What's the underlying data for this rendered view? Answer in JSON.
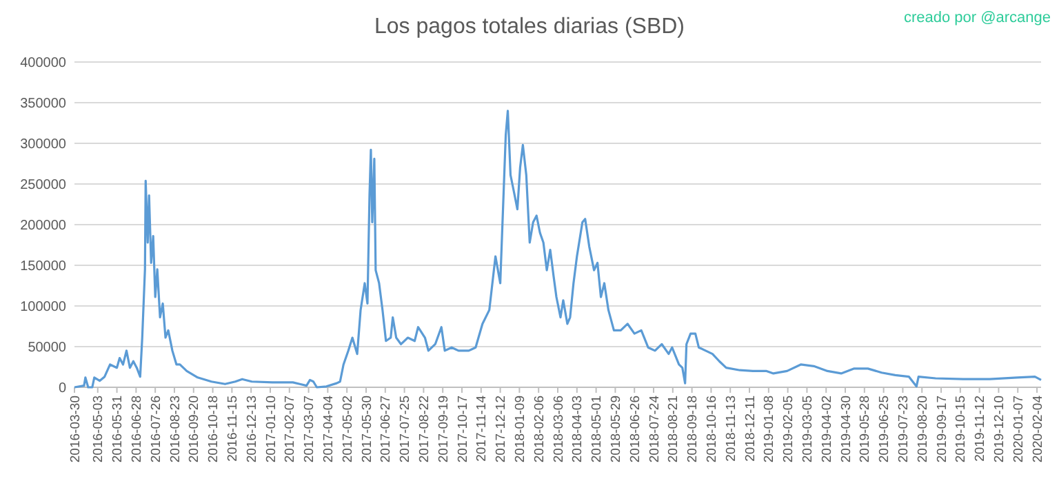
{
  "chart_data": {
    "type": "line",
    "title": "Los pagos totales diarias (SBD)",
    "annotations": [
      "creado por @arcange"
    ],
    "x": [
      "2016-03-30",
      "2016-04-13",
      "2016-04-15",
      "2016-04-19",
      "2016-04-25",
      "2016-04-28",
      "2016-05-06",
      "2016-05-13",
      "2016-05-21",
      "2016-05-31",
      "2016-06-04",
      "2016-06-09",
      "2016-06-14",
      "2016-06-19",
      "2016-06-24",
      "2016-06-29",
      "2016-07-04",
      "2016-07-07",
      "2016-07-11",
      "2016-07-12",
      "2016-07-15",
      "2016-07-17",
      "2016-07-20",
      "2016-07-23",
      "2016-07-26",
      "2016-07-29",
      "2016-08-02",
      "2016-08-06",
      "2016-08-10",
      "2016-08-14",
      "2016-08-20",
      "2016-08-26",
      "2016-08-31",
      "2016-09-10",
      "2016-09-26",
      "2016-10-16",
      "2016-11-05",
      "2016-11-20",
      "2016-11-30",
      "2016-12-14",
      "2017-01-13",
      "2017-02-12",
      "2017-02-22",
      "2017-03-04",
      "2017-03-09",
      "2017-03-14",
      "2017-03-19",
      "2017-04-02",
      "2017-04-17",
      "2017-04-22",
      "2017-04-27",
      "2017-05-04",
      "2017-05-10",
      "2017-05-17",
      "2017-05-22",
      "2017-05-28",
      "2017-06-01",
      "2017-06-04",
      "2017-06-06",
      "2017-06-08",
      "2017-06-11",
      "2017-06-13",
      "2017-06-18",
      "2017-06-23",
      "2017-06-28",
      "2017-07-05",
      "2017-07-08",
      "2017-07-13",
      "2017-07-20",
      "2017-07-30",
      "2017-08-09",
      "2017-08-14",
      "2017-08-24",
      "2017-08-29",
      "2017-09-08",
      "2017-09-17",
      "2017-09-22",
      "2017-10-02",
      "2017-10-12",
      "2017-10-27",
      "2017-11-06",
      "2017-11-16",
      "2017-11-26",
      "2017-12-05",
      "2017-12-12",
      "2017-12-20",
      "2017-12-23",
      "2017-12-27",
      "2018-01-02",
      "2018-01-06",
      "2018-01-10",
      "2018-01-14",
      "2018-01-19",
      "2018-01-24",
      "2018-01-29",
      "2018-02-03",
      "2018-02-08",
      "2018-02-13",
      "2018-02-18",
      "2018-02-23",
      "2018-02-28",
      "2018-03-04",
      "2018-03-10",
      "2018-03-14",
      "2018-03-20",
      "2018-03-24",
      "2018-03-29",
      "2018-04-03",
      "2018-04-11",
      "2018-04-15",
      "2018-04-21",
      "2018-04-28",
      "2018-05-03",
      "2018-05-08",
      "2018-05-13",
      "2018-05-19",
      "2018-05-27",
      "2018-06-06",
      "2018-06-16",
      "2018-06-26",
      "2018-07-06",
      "2018-07-16",
      "2018-07-26",
      "2018-08-05",
      "2018-08-15",
      "2018-08-20",
      "2018-08-30",
      "2018-09-04",
      "2018-09-08",
      "2018-09-10",
      "2018-09-16",
      "2018-09-23",
      "2018-09-28",
      "2018-10-08",
      "2018-10-18",
      "2018-10-28",
      "2018-11-07",
      "2018-11-27",
      "2018-12-16",
      "2019-01-05",
      "2019-01-15",
      "2019-02-04",
      "2019-02-24",
      "2019-03-15",
      "2019-04-04",
      "2019-04-24",
      "2019-05-13",
      "2019-06-02",
      "2019-06-22",
      "2019-07-12",
      "2019-08-01",
      "2019-08-12",
      "2019-08-15",
      "2019-09-09",
      "2019-10-19",
      "2019-11-27",
      "2020-01-06",
      "2020-02-01",
      "2020-02-10"
    ],
    "series": [
      {
        "color": "#5b9bd5",
        "values": [
          0,
          2000,
          12000,
          0,
          0,
          12000,
          8000,
          13000,
          28000,
          24000,
          36000,
          28000,
          45000,
          24000,
          32000,
          24000,
          13000,
          61000,
          145000,
          254000,
          178000,
          236000,
          153000,
          186000,
          111000,
          145000,
          86000,
          103000,
          61000,
          70000,
          45000,
          28000,
          28000,
          20000,
          12000,
          7000,
          4000,
          7000,
          10000,
          7000,
          6000,
          6000,
          4000,
          2000,
          9000,
          7000,
          0,
          1000,
          5000,
          7000,
          28000,
          45000,
          61000,
          41000,
          95000,
          128000,
          103000,
          236000,
          292000,
          203000,
          281000,
          144000,
          128000,
          95000,
          57000,
          61000,
          86000,
          61000,
          53000,
          61000,
          57000,
          74000,
          61000,
          45000,
          53000,
          74000,
          45000,
          49000,
          45000,
          45000,
          49000,
          78000,
          95000,
          161000,
          128000,
          310000,
          340000,
          261000,
          236000,
          219000,
          270000,
          298000,
          261000,
          178000,
          203000,
          211000,
          190000,
          178000,
          144000,
          169000,
          136000,
          111000,
          86000,
          107000,
          78000,
          86000,
          128000,
          161000,
          203000,
          207000,
          173000,
          144000,
          153000,
          111000,
          128000,
          95000,
          70000,
          70000,
          78000,
          66000,
          70000,
          49000,
          45000,
          53000,
          41000,
          49000,
          28000,
          24000,
          5000,
          53000,
          66000,
          66000,
          49000,
          45000,
          41000,
          32000,
          24000,
          21000,
          20000,
          20000,
          17000,
          20000,
          28000,
          26000,
          20000,
          17000,
          23000,
          23000,
          18000,
          15000,
          13000,
          1000,
          13000,
          11000,
          10000,
          10000,
          12000,
          13000,
          9000
        ]
      }
    ],
    "xlim": [
      "2016-03-30",
      "2020-02-10"
    ],
    "xticks": [
      "2016-03-30",
      "2016-05-03",
      "2016-05-31",
      "2016-06-28",
      "2016-07-26",
      "2016-08-23",
      "2016-09-20",
      "2016-10-18",
      "2016-11-15",
      "2016-12-13",
      "2017-01-10",
      "2017-02-07",
      "2017-03-07",
      "2017-04-04",
      "2017-05-02",
      "2017-05-30",
      "2017-06-27",
      "2017-07-25",
      "2017-08-22",
      "2017-09-19",
      "2017-10-17",
      "2017-11-14",
      "2017-12-12",
      "2018-01-09",
      "2018-02-06",
      "2018-03-06",
      "2018-04-03",
      "2018-05-01",
      "2018-05-29",
      "2018-06-26",
      "2018-07-24",
      "2018-08-21",
      "2018-09-18",
      "2018-10-16",
      "2018-11-13",
      "2018-12-11",
      "2019-01-08",
      "2019-02-05",
      "2019-03-05",
      "2019-04-02",
      "2019-04-30",
      "2019-05-28",
      "2019-06-25",
      "2019-07-23",
      "2019-08-20",
      "2019-09-17",
      "2019-10-15",
      "2019-11-12",
      "2019-12-10",
      "2020-01-07",
      "2020-02-04"
    ],
    "ylim": [
      0,
      400000
    ],
    "yticks": [
      0,
      50000,
      100000,
      150000,
      200000,
      250000,
      300000,
      350000,
      400000
    ],
    "grid": "y"
  }
}
